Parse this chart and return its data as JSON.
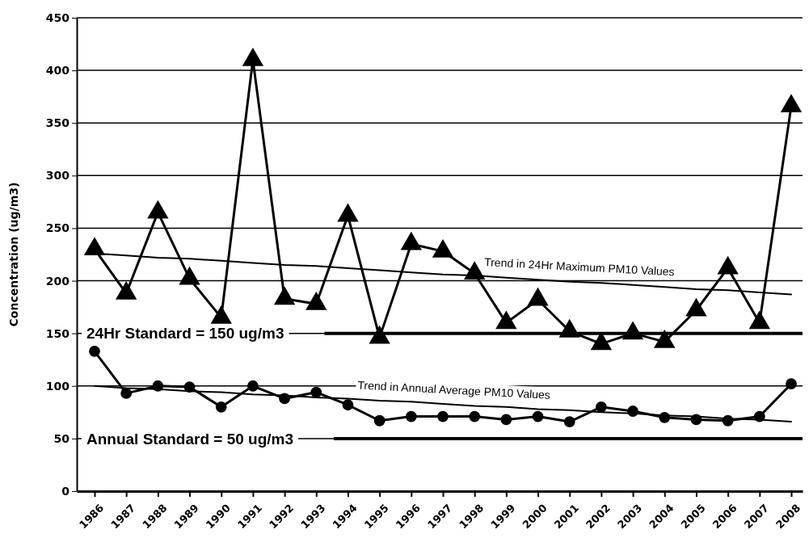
{
  "chart_data": {
    "type": "line",
    "ylabel": "Concentration (ug/m3)",
    "categories": [
      "1986",
      "1987",
      "1988",
      "1989",
      "1990",
      "1991",
      "1992",
      "1993",
      "1994",
      "1995",
      "1996",
      "1997",
      "1998",
      "1999",
      "2000",
      "2001",
      "2002",
      "2003",
      "2004",
      "2005",
      "2006",
      "2007",
      "2008"
    ],
    "series": [
      {
        "color": "#000000",
        "marker": "triangle",
        "values": [
          230,
          188,
          265,
          202,
          165,
          410,
          183,
          178,
          262,
          146,
          235,
          228,
          207,
          160,
          182,
          152,
          140,
          150,
          142,
          172,
          212,
          160,
          366
        ]
      },
      {
        "color": "#000000",
        "marker": "circle",
        "values": [
          133,
          93,
          100,
          99,
          80,
          100,
          88,
          94,
          82,
          67,
          71,
          71,
          71,
          68,
          71,
          66,
          80,
          76,
          70,
          68,
          67,
          71,
          102
        ]
      },
      {
        "type": "line",
        "color": "#000000",
        "marker": "none",
        "values": [
          226,
          224,
          222,
          221,
          219,
          217,
          215,
          214,
          212,
          210,
          208,
          206,
          205,
          203,
          201,
          199,
          198,
          196,
          194,
          192,
          191,
          189,
          187
        ]
      },
      {
        "type": "line",
        "color": "#000000",
        "marker": "none",
        "values": [
          100,
          98,
          97,
          95,
          94,
          92,
          91,
          89,
          88,
          86,
          85,
          83,
          81,
          80,
          78,
          77,
          75,
          74,
          72,
          71,
          69,
          68,
          66
        ]
      }
    ],
    "ylim": [
      0,
      450
    ],
    "yticks": [
      0,
      50,
      100,
      150,
      200,
      250,
      300,
      350,
      400,
      450
    ],
    "grid": "y",
    "ref_lines": [
      {
        "axis": "y",
        "value": 150,
        "label": "24Hr Standard = 150 ug/m3",
        "color": "#000000"
      },
      {
        "axis": "y",
        "value": 50,
        "label": "Annual Standard  = 50 ug/m3",
        "color": "#000000"
      }
    ],
    "annotations": [
      "Trend in 24Hr Maximum PM10 Values",
      "Trend in Annual Average PM10 Values"
    ]
  }
}
